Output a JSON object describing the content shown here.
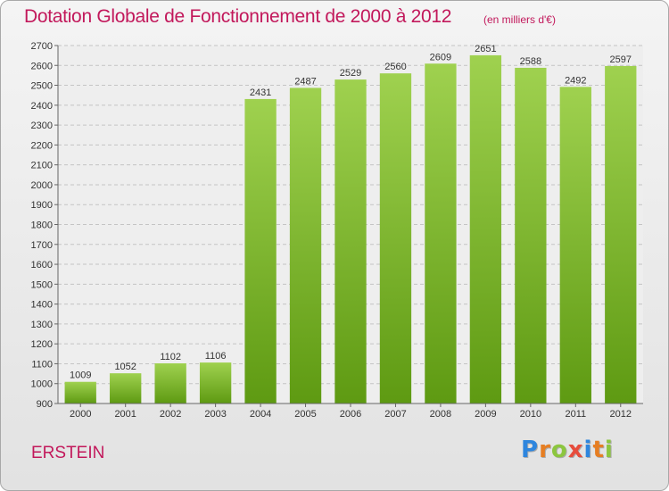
{
  "header": {
    "title": "Dotation Globale de Fonctionnement de 2000 à 2012",
    "subtitle": "(en milliers d'€)"
  },
  "footer": {
    "commune": "ERSTEIN",
    "logo_letters": [
      {
        "char": "P",
        "color": "#2e86de"
      },
      {
        "char": "r",
        "color": "#e67e22"
      },
      {
        "char": "o",
        "color": "#8cc63f"
      },
      {
        "char": "x",
        "color": "#e74c3c"
      },
      {
        "char": "i",
        "color": "#2e86de"
      },
      {
        "char": "t",
        "color": "#e67e22"
      },
      {
        "char": "i",
        "color": "#8cc63f"
      }
    ]
  },
  "colors": {
    "title": "#c2185b",
    "bar_top": "#9fd14f",
    "bar_bottom": "#5e9a12",
    "grid": "#c4c4c4",
    "axis": "#666666",
    "label": "#333333"
  },
  "chart_data": {
    "type": "bar",
    "title": "Dotation Globale de Fonctionnement de 2000 à 2012",
    "subtitle": "(en milliers d'€)",
    "xlabel": "",
    "ylabel": "",
    "categories": [
      "2000",
      "2001",
      "2002",
      "2003",
      "2004",
      "2005",
      "2006",
      "2007",
      "2008",
      "2009",
      "2010",
      "2011",
      "2012"
    ],
    "values": [
      1009,
      1052,
      1102,
      1106,
      2431,
      2487,
      2529,
      2560,
      2609,
      2651,
      2588,
      2492,
      2597
    ],
    "ylim": [
      900,
      2700
    ],
    "ytick_step": 100,
    "grid": true,
    "legend": "none"
  }
}
